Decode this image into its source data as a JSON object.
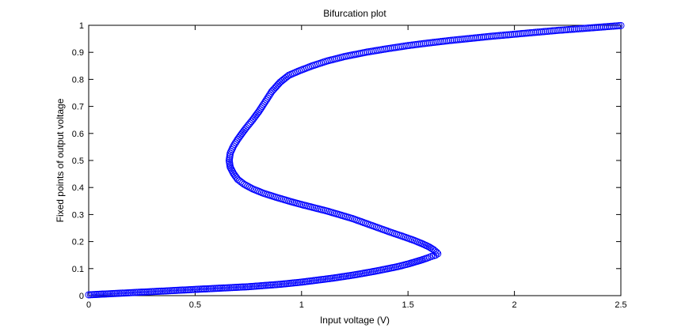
{
  "chart_data": {
    "type": "scatter",
    "title": "Bifurcation plot",
    "xlabel": "Input voltage (V)",
    "ylabel": "Fixed points of output voltage",
    "xlim": [
      0,
      2.5
    ],
    "ylim": [
      0,
      1
    ],
    "xticks": [
      0,
      0.5,
      1,
      1.5,
      2,
      2.5
    ],
    "xtick_labels": [
      "0",
      "0.5",
      "1",
      "1.5",
      "2",
      "2.5"
    ],
    "yticks": [
      0,
      0.1,
      0.2,
      0.3,
      0.4,
      0.5,
      0.6,
      0.7,
      0.8,
      0.9,
      1
    ],
    "ytick_labels": [
      "0",
      "0.1",
      "0.2",
      "0.3",
      "0.4",
      "0.5",
      "0.6",
      "0.7",
      "0.8",
      "0.9",
      "1"
    ],
    "grid": false,
    "marker": "circle-open",
    "color": "#0000ff",
    "series": [
      {
        "x": [
          0.0,
          0.05,
          0.1,
          0.15,
          0.2,
          0.25,
          0.3,
          0.35,
          0.4,
          0.45,
          0.5,
          0.55,
          0.6,
          0.65,
          0.7,
          0.75,
          0.8,
          0.85,
          0.9,
          0.95,
          1.0,
          1.05,
          1.1,
          1.15,
          1.2,
          1.25,
          1.3,
          1.35,
          1.4,
          1.45,
          1.5,
          1.53,
          1.56,
          1.59,
          1.61,
          1.63,
          1.64,
          1.635,
          1.62,
          1.6,
          1.57,
          1.53,
          1.48,
          1.42,
          1.36,
          1.3,
          1.24,
          1.18,
          1.12,
          1.06,
          1.0,
          0.94,
          0.88,
          0.82,
          0.77,
          0.73,
          0.7,
          0.68,
          0.665,
          0.66,
          0.665,
          0.68,
          0.7,
          0.72,
          0.74,
          0.77,
          0.8,
          0.83,
          0.86,
          0.9,
          0.94,
          0.99,
          1.05,
          1.12,
          1.2,
          1.3,
          1.4,
          1.5,
          1.6,
          1.7,
          1.8,
          1.9,
          2.0,
          2.1,
          2.2,
          2.3,
          2.4,
          2.5
        ],
        "y": [
          0.003,
          0.005,
          0.007,
          0.009,
          0.011,
          0.013,
          0.015,
          0.017,
          0.019,
          0.021,
          0.023,
          0.025,
          0.027,
          0.029,
          0.031,
          0.033,
          0.036,
          0.039,
          0.042,
          0.046,
          0.05,
          0.055,
          0.06,
          0.065,
          0.071,
          0.077,
          0.084,
          0.091,
          0.099,
          0.107,
          0.117,
          0.124,
          0.131,
          0.139,
          0.145,
          0.15,
          0.155,
          0.16,
          0.17,
          0.18,
          0.191,
          0.204,
          0.218,
          0.234,
          0.251,
          0.268,
          0.285,
          0.299,
          0.313,
          0.325,
          0.337,
          0.35,
          0.364,
          0.379,
          0.395,
          0.412,
          0.43,
          0.452,
          0.475,
          0.5,
          0.527,
          0.553,
          0.578,
          0.6,
          0.621,
          0.65,
          0.682,
          0.718,
          0.755,
          0.79,
          0.815,
          0.832,
          0.85,
          0.868,
          0.884,
          0.9,
          0.913,
          0.925,
          0.935,
          0.944,
          0.952,
          0.96,
          0.967,
          0.974,
          0.981,
          0.987,
          0.993,
          0.999
        ]
      }
    ]
  }
}
